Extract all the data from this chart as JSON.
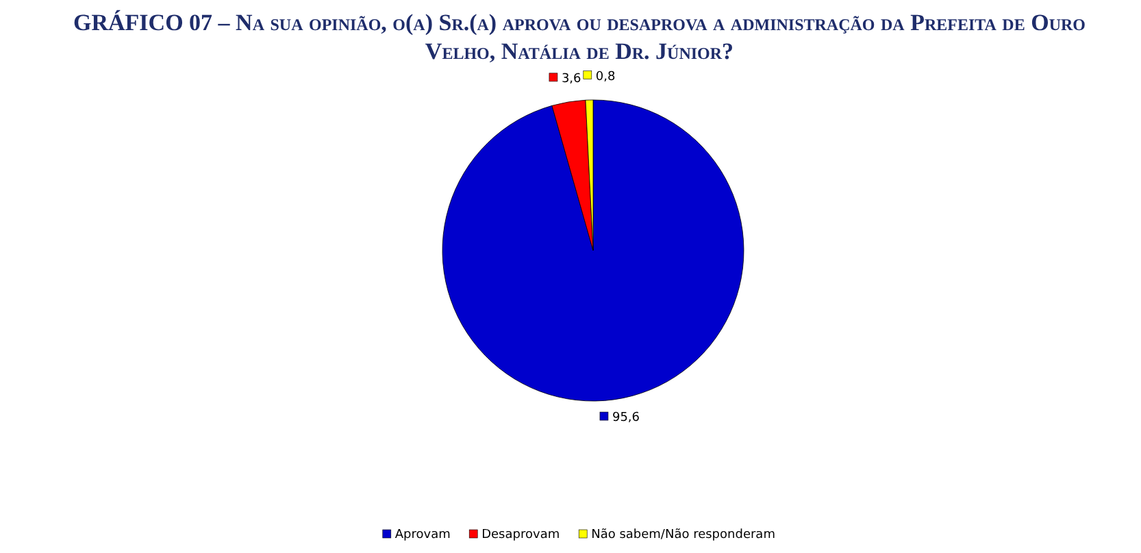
{
  "chart_data": {
    "type": "pie",
    "title": "GRÁFICO 07 – Na sua opinião, o(a) Sr.(a) aprova ou desaprova a administração da Prefeita de Ouro Velho, Natália de Dr. Júnior?",
    "categories": [
      "Aprovam",
      "Desaprovam",
      "Não sabem/Não responderam"
    ],
    "values": [
      95.6,
      3.6,
      0.8
    ],
    "colors": [
      "#0000cc",
      "#ff0000",
      "#ffff00"
    ],
    "value_labels": [
      "95,6",
      "3,6",
      "0,8"
    ],
    "legend": "bottom"
  }
}
